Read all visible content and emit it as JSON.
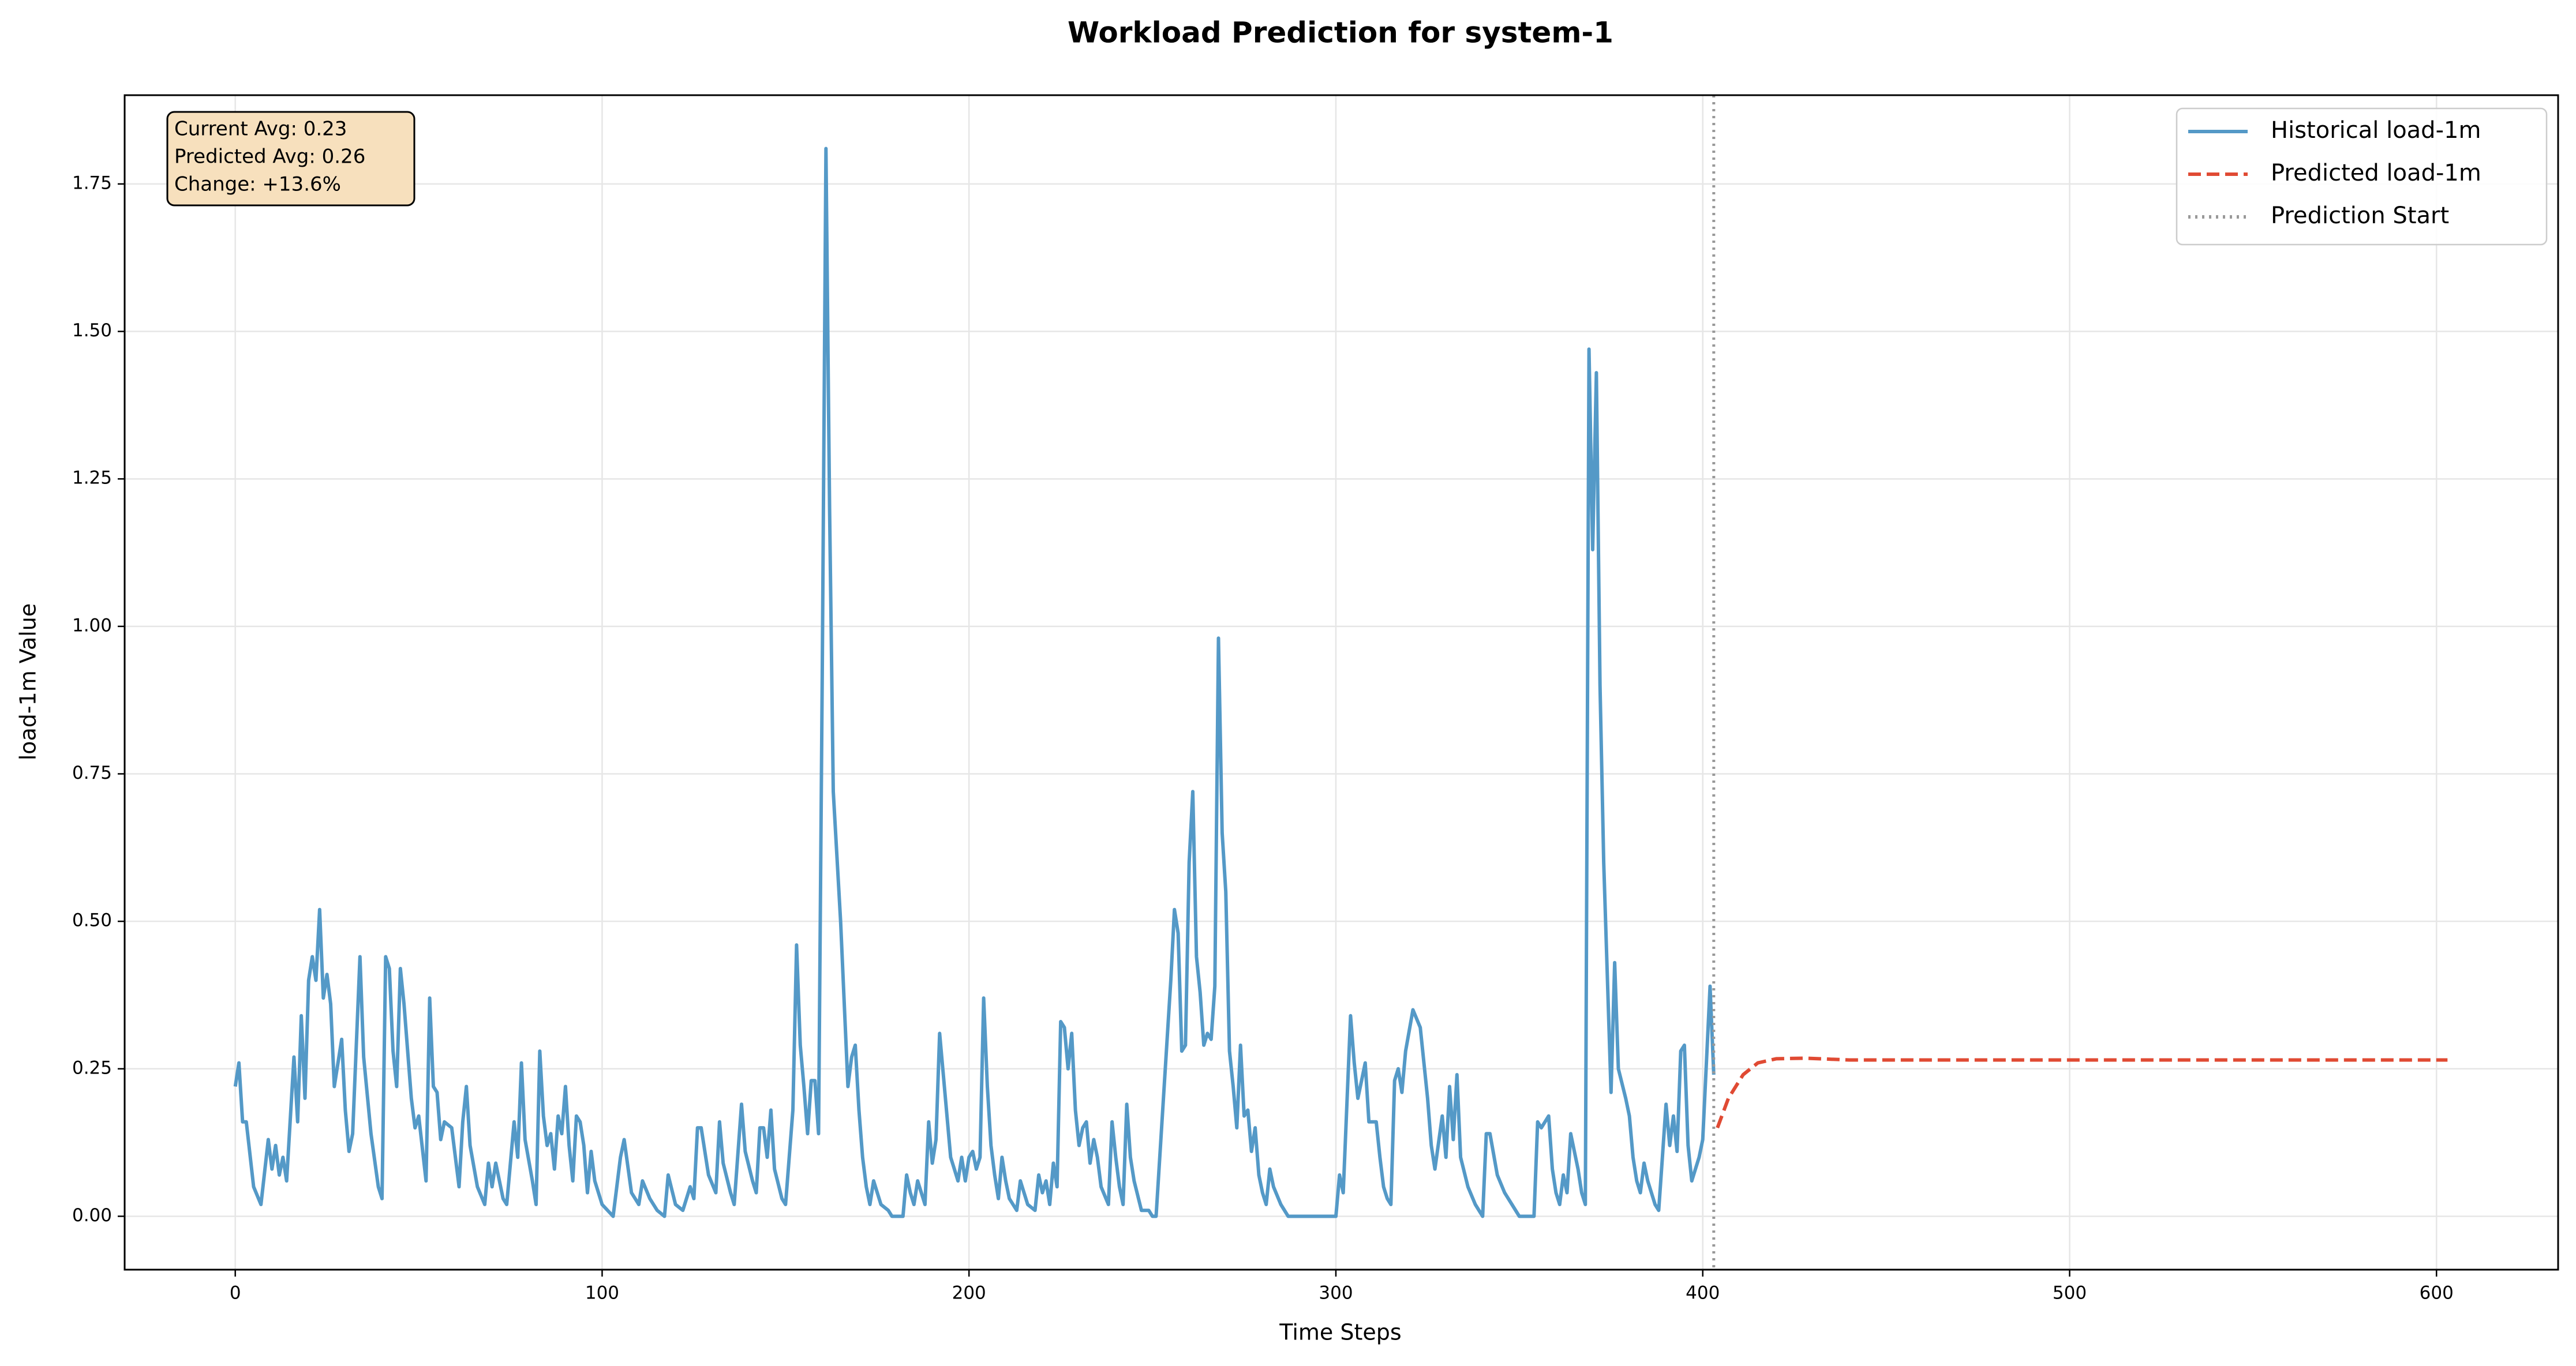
{
  "chart_data": {
    "type": "line",
    "title": "Workload Prediction for system-1",
    "xlabel": "Time Steps",
    "ylabel": "load-1m Value",
    "xlim": [
      -30.15,
      633.15
    ],
    "ylim": [
      -0.0905,
      1.9005
    ],
    "xticks": [
      0,
      100,
      200,
      300,
      400,
      500,
      600
    ],
    "yticks": [
      {
        "value": 0,
        "label": "0.00"
      },
      {
        "value": 0.25,
        "label": "0.25"
      },
      {
        "value": 0.5,
        "label": "0.50"
      },
      {
        "value": 0.75,
        "label": "0.75"
      },
      {
        "value": 1,
        "label": "1.00"
      },
      {
        "value": 1.25,
        "label": "1.25"
      },
      {
        "value": 1.5,
        "label": "1.50"
      },
      {
        "value": 1.75,
        "label": "1.75"
      }
    ],
    "grid": true,
    "legend": "upper right",
    "annotation": [
      "Current Avg: 0.23",
      "Predicted Avg: 0.26",
      "Change: +13.6%"
    ],
    "series": [
      {
        "name": "Historical load-1m",
        "color": "#5499c7",
        "linestyle": "solid",
        "x": [
          0,
          1,
          2,
          3,
          5,
          7,
          9,
          10,
          11,
          12,
          13,
          14,
          16,
          17,
          18,
          19,
          20,
          21,
          22,
          23,
          24,
          25,
          26,
          27,
          29,
          30,
          31,
          32,
          34,
          35,
          37,
          39,
          40,
          41,
          42,
          43,
          44,
          45,
          46,
          48,
          49,
          50,
          52,
          53,
          54,
          55,
          56,
          57,
          59,
          61,
          62,
          63,
          64,
          66,
          68,
          69,
          70,
          71,
          73,
          74,
          76,
          77,
          78,
          79,
          81,
          82,
          83,
          84,
          85,
          86,
          87,
          88,
          89,
          90,
          91,
          92,
          93,
          94,
          95,
          96,
          97,
          98,
          100,
          103,
          105,
          106,
          108,
          110,
          111,
          113,
          115,
          117,
          118,
          120,
          122,
          124,
          125,
          126,
          127,
          129,
          131,
          132,
          133,
          135,
          136,
          138,
          139,
          141,
          142,
          143,
          144,
          145,
          146,
          147,
          149,
          150,
          152,
          153,
          154,
          155,
          156,
          157,
          158,
          159,
          160,
          161,
          162,
          163,
          165,
          167,
          168,
          169,
          170,
          171,
          172,
          173,
          174,
          176,
          178,
          179,
          182,
          183,
          184,
          185,
          186,
          187,
          188,
          189,
          190,
          191,
          192,
          193,
          195,
          196,
          197,
          198,
          199,
          200,
          201,
          202,
          203,
          204,
          205,
          206,
          207,
          208,
          209,
          210,
          211,
          213,
          214,
          216,
          218,
          219,
          220,
          221,
          222,
          223,
          224,
          225,
          226,
          227,
          228,
          229,
          230,
          231,
          232,
          233,
          234,
          235,
          236,
          238,
          239,
          240,
          241,
          242,
          243,
          244,
          245,
          247,
          249,
          250,
          251,
          255,
          256,
          257,
          258,
          259,
          260,
          261,
          262,
          263,
          264,
          265,
          266,
          267,
          268,
          269,
          270,
          271,
          272,
          273,
          274,
          275,
          276,
          277,
          278,
          279,
          280,
          281,
          282,
          283,
          285,
          287,
          300,
          301,
          302,
          304,
          305,
          306,
          307,
          308,
          309,
          311,
          312,
          313,
          314,
          315,
          316,
          317,
          318,
          319,
          321,
          323,
          325,
          326,
          327,
          329,
          330,
          331,
          332,
          333,
          334,
          336,
          338,
          340,
          341,
          342,
          344,
          346,
          348,
          350,
          354,
          355,
          356,
          358,
          359,
          360,
          361,
          362,
          363,
          364,
          366,
          367,
          368,
          369,
          370,
          371,
          372,
          373,
          375,
          376,
          377,
          379,
          380,
          381,
          382,
          383,
          384,
          385,
          387,
          388,
          389,
          390,
          391,
          392,
          393,
          394,
          395,
          396,
          397,
          399,
          400,
          402,
          403
        ],
        "values": [
          0.22,
          0.26,
          0.16,
          0.16,
          0.05,
          0.02,
          0.13,
          0.08,
          0.12,
          0.07,
          0.1,
          0.06,
          0.27,
          0.16,
          0.34,
          0.2,
          0.4,
          0.44,
          0.4,
          0.52,
          0.37,
          0.41,
          0.36,
          0.22,
          0.3,
          0.18,
          0.11,
          0.14,
          0.44,
          0.27,
          0.14,
          0.05,
          0.03,
          0.44,
          0.42,
          0.28,
          0.22,
          0.42,
          0.36,
          0.2,
          0.15,
          0.17,
          0.06,
          0.37,
          0.22,
          0.21,
          0.13,
          0.16,
          0.15,
          0.05,
          0.16,
          0.22,
          0.12,
          0.05,
          0.02,
          0.09,
          0.05,
          0.09,
          0.03,
          0.02,
          0.16,
          0.1,
          0.26,
          0.13,
          0.06,
          0.02,
          0.28,
          0.17,
          0.12,
          0.14,
          0.08,
          0.17,
          0.14,
          0.22,
          0.12,
          0.06,
          0.17,
          0.16,
          0.12,
          0.04,
          0.11,
          0.06,
          0.02,
          0,
          0.1,
          0.13,
          0.04,
          0.02,
          0.06,
          0.03,
          0.01,
          0,
          0.07,
          0.02,
          0.01,
          0.05,
          0.03,
          0.15,
          0.15,
          0.07,
          0.04,
          0.16,
          0.09,
          0.04,
          0.02,
          0.19,
          0.11,
          0.06,
          0.04,
          0.15,
          0.15,
          0.1,
          0.18,
          0.08,
          0.03,
          0.02,
          0.18,
          0.46,
          0.29,
          0.22,
          0.14,
          0.23,
          0.23,
          0.14,
          0.92,
          1.81,
          1.2,
          0.72,
          0.5,
          0.22,
          0.27,
          0.29,
          0.18,
          0.1,
          0.05,
          0.02,
          0.06,
          0.02,
          0.01,
          0,
          0,
          0.07,
          0.04,
          0.02,
          0.06,
          0.04,
          0.02,
          0.16,
          0.09,
          0.13,
          0.31,
          0.24,
          0.1,
          0.08,
          0.06,
          0.1,
          0.06,
          0.1,
          0.11,
          0.08,
          0.1,
          0.37,
          0.22,
          0.12,
          0.07,
          0.03,
          0.1,
          0.06,
          0.03,
          0.01,
          0.06,
          0.02,
          0.01,
          0.07,
          0.04,
          0.06,
          0.02,
          0.09,
          0.05,
          0.33,
          0.32,
          0.25,
          0.31,
          0.18,
          0.12,
          0.15,
          0.16,
          0.09,
          0.13,
          0.1,
          0.05,
          0.02,
          0.16,
          0.1,
          0.05,
          0.02,
          0.19,
          0.1,
          0.06,
          0.01,
          0.01,
          0,
          0,
          0.4,
          0.52,
          0.48,
          0.28,
          0.29,
          0.6,
          0.72,
          0.44,
          0.38,
          0.29,
          0.31,
          0.3,
          0.39,
          0.98,
          0.65,
          0.55,
          0.28,
          0.22,
          0.15,
          0.29,
          0.17,
          0.18,
          0.11,
          0.15,
          0.07,
          0.04,
          0.02,
          0.08,
          0.05,
          0.02,
          0,
          0,
          0.07,
          0.04,
          0.34,
          0.26,
          0.2,
          0.23,
          0.26,
          0.16,
          0.16,
          0.1,
          0.05,
          0.03,
          0.02,
          0.23,
          0.25,
          0.21,
          0.28,
          0.35,
          0.32,
          0.2,
          0.12,
          0.08,
          0.17,
          0.1,
          0.22,
          0.13,
          0.24,
          0.1,
          0.05,
          0.02,
          0,
          0.14,
          0.14,
          0.07,
          0.04,
          0.02,
          0,
          0,
          0.16,
          0.15,
          0.17,
          0.08,
          0.04,
          0.02,
          0.07,
          0.04,
          0.14,
          0.08,
          0.04,
          0.02,
          1.47,
          1.13,
          1.43,
          0.9,
          0.6,
          0.21,
          0.43,
          0.25,
          0.2,
          0.17,
          0.1,
          0.06,
          0.04,
          0.09,
          0.06,
          0.02,
          0.01,
          0.1,
          0.19,
          0.12,
          0.17,
          0.11,
          0.28,
          0.29,
          0.12,
          0.06,
          0.1,
          0.13,
          0.39,
          0.24
        ]
      },
      {
        "name": "Predicted load-1m",
        "color": "#e04a33",
        "linestyle": "dashed",
        "x": [
          404,
          407,
          411,
          415,
          420,
          428,
          440,
          500,
          603
        ],
        "values": [
          0.15,
          0.2,
          0.24,
          0.26,
          0.267,
          0.268,
          0.265,
          0.265,
          0.265
        ]
      }
    ],
    "vline": {
      "name": "Prediction Start",
      "x": 403,
      "color": "#999999",
      "linestyle": "dotted"
    }
  }
}
